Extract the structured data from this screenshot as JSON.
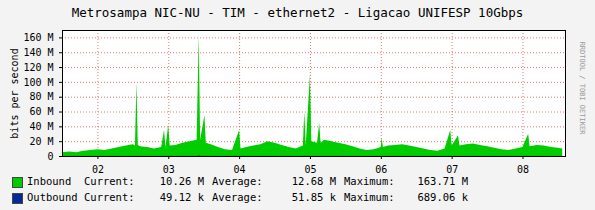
{
  "chart_data": {
    "type": "area",
    "title": "Metrosampa NIC-NU - TIM - ethernet2 - Ligacao UNIFESP 10Gbps",
    "y_label": "bits per second",
    "annotation": "RRDTOOL / TOBI OETIKER",
    "x": [
      1.5,
      1.6,
      1.7,
      1.8,
      1.9,
      2.0,
      2.1,
      2.2,
      2.3,
      2.4,
      2.5,
      2.53,
      2.55,
      2.57,
      2.6,
      2.7,
      2.8,
      2.9,
      2.94,
      2.96,
      3.0,
      3.02,
      3.1,
      3.2,
      3.3,
      3.4,
      3.43,
      3.45,
      3.51,
      3.53,
      3.6,
      3.7,
      3.8,
      3.9,
      4.0,
      4.02,
      4.1,
      4.2,
      4.3,
      4.4,
      4.5,
      4.6,
      4.7,
      4.8,
      4.9,
      4.92,
      4.94,
      5.0,
      5.02,
      5.1,
      5.13,
      5.15,
      5.2,
      5.3,
      5.4,
      5.5,
      5.6,
      5.7,
      5.8,
      5.9,
      6.0,
      6.01,
      6.03,
      6.1,
      6.2,
      6.3,
      6.4,
      6.5,
      6.6,
      6.7,
      6.8,
      6.9,
      6.98,
      7.0,
      7.09,
      7.11,
      7.2,
      7.3,
      7.4,
      7.5,
      7.6,
      7.7,
      7.8,
      7.9,
      8.0,
      8.08,
      8.1,
      8.2,
      8.3,
      8.4,
      8.5,
      8.56
    ],
    "series": [
      {
        "name": "Inbound",
        "color": "#00cc00",
        "type": "area",
        "values": [
          5,
          6,
          5,
          7,
          8,
          9,
          8,
          10,
          12,
          14,
          16,
          14,
          100,
          15,
          13,
          12,
          10,
          12,
          35,
          12,
          42,
          14,
          15,
          18,
          20,
          22,
          163.71,
          22,
          55,
          18,
          16,
          12,
          9,
          8,
          35,
          10,
          12,
          14,
          16,
          20,
          18,
          15,
          12,
          10,
          14,
          60,
          14,
          110,
          20,
          18,
          45,
          18,
          22,
          20,
          18,
          16,
          13,
          10,
          8,
          9,
          12,
          25,
          12,
          14,
          15,
          16,
          14,
          12,
          10,
          8,
          7,
          10,
          35,
          14,
          28,
          14,
          16,
          17,
          15,
          13,
          11,
          9,
          8,
          10,
          12,
          30,
          13,
          15,
          14,
          12,
          11,
          10.26
        ],
        "stats": [
          {
            "label": "Current:",
            "text": "10.26 M"
          },
          {
            "label": "Average:",
            "text": "12.68 M"
          },
          {
            "label": "Maximum:",
            "text": "163.71 M"
          }
        ]
      },
      {
        "name": "Outbound",
        "color": "#002a97",
        "type": "line",
        "values": [
          0.05,
          0.05,
          0.05,
          0.05,
          0.05,
          0.05,
          0.05,
          0.05,
          0.05,
          0.05,
          0.05,
          0.05,
          0.2,
          0.05,
          0.05,
          0.05,
          0.05,
          0.05,
          0.1,
          0.05,
          0.1,
          0.05,
          0.05,
          0.05,
          0.05,
          0.05,
          0.689,
          0.05,
          0.15,
          0.05,
          0.05,
          0.05,
          0.05,
          0.05,
          0.1,
          0.05,
          0.05,
          0.05,
          0.05,
          0.05,
          0.05,
          0.05,
          0.05,
          0.05,
          0.05,
          0.1,
          0.05,
          0.2,
          0.05,
          0.05,
          0.1,
          0.05,
          0.05,
          0.05,
          0.05,
          0.05,
          0.05,
          0.05,
          0.05,
          0.05,
          0.05,
          0.08,
          0.05,
          0.05,
          0.05,
          0.05,
          0.05,
          0.05,
          0.05,
          0.05,
          0.05,
          0.05,
          0.1,
          0.05,
          0.08,
          0.05,
          0.05,
          0.05,
          0.05,
          0.05,
          0.05,
          0.05,
          0.05,
          0.05,
          0.05,
          0.08,
          0.05,
          0.05,
          0.05,
          0.05,
          0.05,
          0.049
        ],
        "stats": [
          {
            "label": "Current:",
            "text": "49.12 k"
          },
          {
            "label": "Average:",
            "text": "51.85 k"
          },
          {
            "label": "Maximum:",
            "text": "689.06 k"
          }
        ]
      }
    ],
    "xlim": [
      1.5,
      8.6
    ],
    "xticks": [
      {
        "value": 2,
        "label": "02"
      },
      {
        "value": 3,
        "label": "03"
      },
      {
        "value": 4,
        "label": "04"
      },
      {
        "value": 5,
        "label": "05"
      },
      {
        "value": 6,
        "label": "06"
      },
      {
        "value": 7,
        "label": "07"
      },
      {
        "value": 8,
        "label": "08"
      }
    ],
    "ylim": [
      0,
      170
    ],
    "yticks": [
      0,
      {
        "value": 20,
        "label": "20 M"
      },
      {
        "value": 40,
        "label": "40 M"
      },
      {
        "value": 60,
        "label": "60 M"
      },
      {
        "value": 80,
        "label": "80 M"
      },
      {
        "value": 100,
        "label": "100 M"
      },
      {
        "value": 120,
        "label": "120 M"
      },
      {
        "value": 140,
        "label": "140 M"
      },
      {
        "value": 160,
        "label": "160 M"
      }
    ],
    "grid": true,
    "legend": "bottom"
  }
}
